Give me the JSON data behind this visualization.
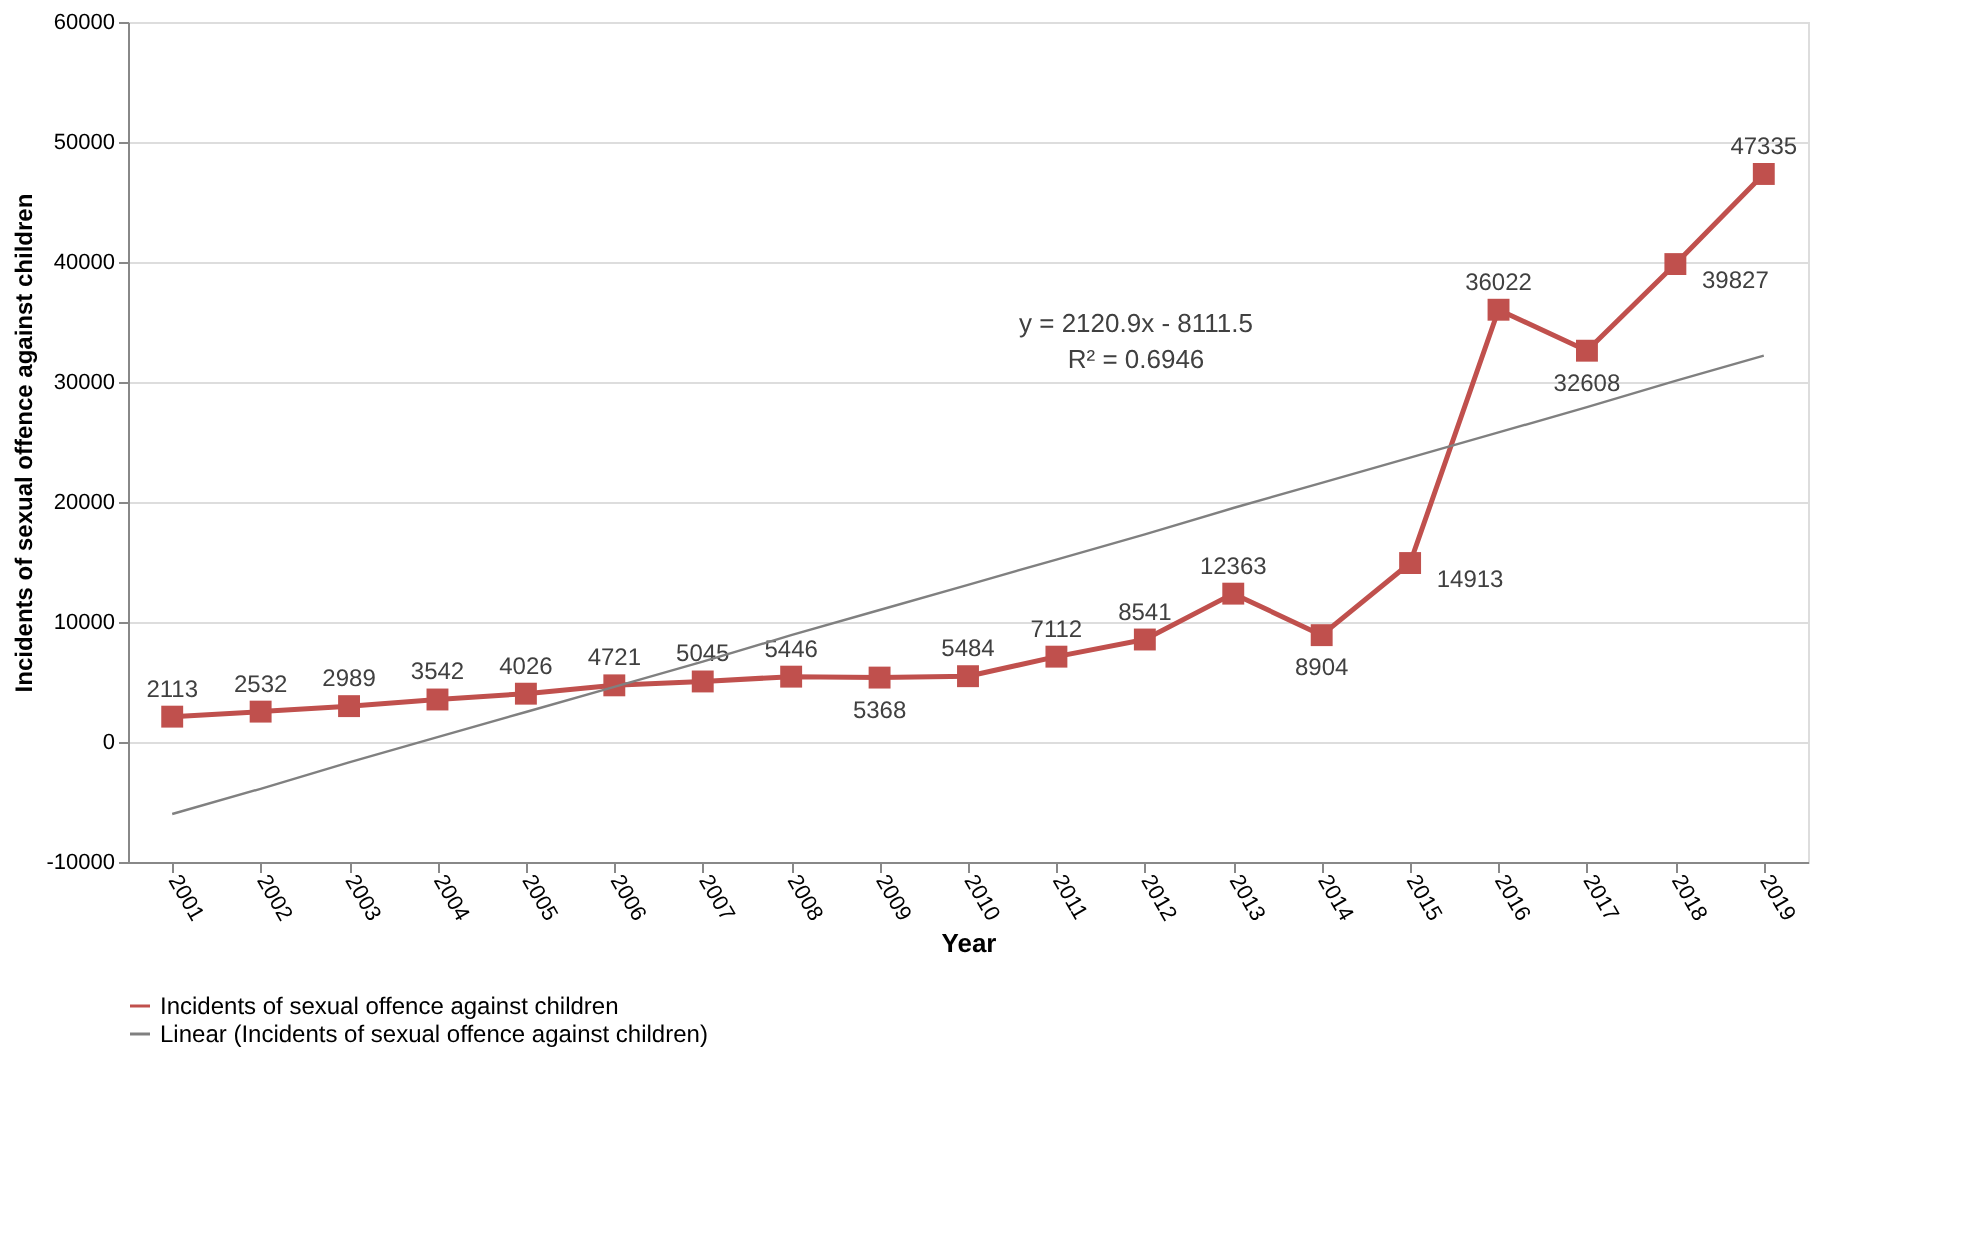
{
  "chart_data": {
    "type": "line",
    "xlabel": "Year",
    "ylabel": "Incidents of sexual offence against children",
    "categories": [
      "2001",
      "2002",
      "2003",
      "2004",
      "2005",
      "2006",
      "2007",
      "2008",
      "2009",
      "2010",
      "2011",
      "2012",
      "2013",
      "2014",
      "2015",
      "2016",
      "2017",
      "2018",
      "2019"
    ],
    "series": [
      {
        "name": "Incidents of sexual offence against children",
        "color": "#c0504d",
        "values": [
          2113,
          2532,
          2989,
          3542,
          4026,
          4721,
          5045,
          5446,
          5368,
          5484,
          7112,
          8541,
          12363,
          8904,
          14913,
          36022,
          32608,
          39827,
          47335
        ],
        "value_labels": [
          "2113",
          "2532",
          "2989",
          "3542",
          "4026",
          "4721",
          "5045",
          "5446",
          "5368",
          "5484",
          "7112",
          "8541",
          "12363",
          "8904",
          "14913",
          "36022",
          "32608",
          "39827",
          "47335"
        ]
      },
      {
        "name": "Linear (Incidents of sexual offence against children)",
        "type": "line",
        "color": "#808080",
        "marker": "none",
        "values": [
          -6000,
          -3900,
          -1700,
          400,
          2500,
          4600,
          6700,
          8900,
          11000,
          13100,
          15200,
          17300,
          19500,
          21600,
          23700,
          25800,
          27900,
          30100,
          32200
        ]
      }
    ],
    "annotations": [
      "y = 2120.9x - 8111.5",
      "R² = 0.6946"
    ],
    "ylim": [
      -10000,
      60000
    ],
    "yticks": [
      -10000,
      0,
      10000,
      20000,
      30000,
      40000,
      50000,
      60000
    ],
    "grid": "y",
    "legend": "bottom",
    "marker": "square"
  }
}
